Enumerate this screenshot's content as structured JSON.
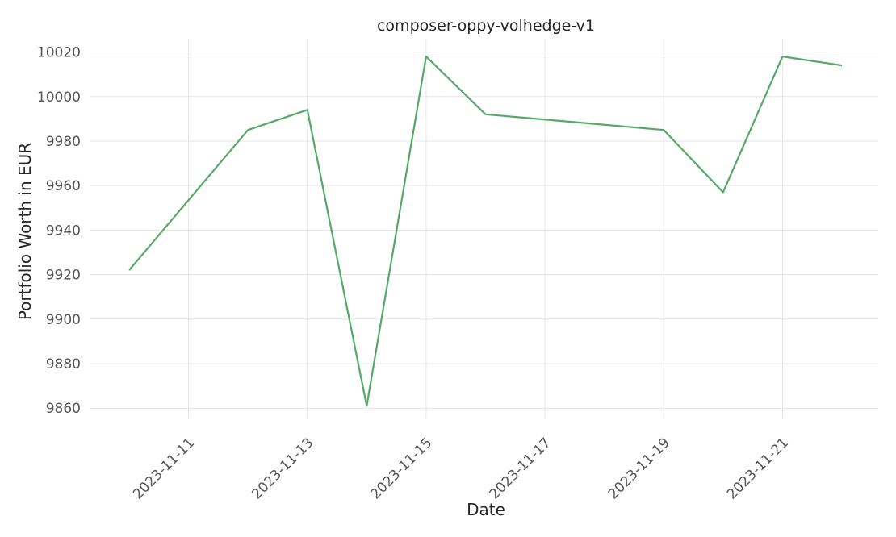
{
  "chart_data": {
    "type": "line",
    "title": "composer-oppy-volhedge-v1",
    "xlabel": "Date",
    "ylabel": "Portfolio Worth in EUR",
    "x": [
      "2023-11-10",
      "2023-11-12",
      "2023-11-13",
      "2023-11-14",
      "2023-11-15",
      "2023-11-16",
      "2023-11-19",
      "2023-11-20",
      "2023-11-21",
      "2023-11-22"
    ],
    "series": [
      {
        "values": [
          9922,
          9985,
          9994,
          9861,
          10018,
          9992,
          9985,
          9957,
          10018,
          10014
        ]
      }
    ],
    "xticks": [
      "2023-11-11",
      "2023-11-13",
      "2023-11-15",
      "2023-11-17",
      "2023-11-19",
      "2023-11-21"
    ],
    "yticks": [
      9860,
      9880,
      9900,
      9920,
      9940,
      9960,
      9980,
      10000,
      10020
    ],
    "xlim": [
      "2023-11-09",
      "2023-11-22"
    ],
    "ylim": [
      9855,
      10026
    ],
    "grid": true,
    "colors": {
      "line": "#55a868",
      "grid": "#e5e5e5"
    }
  }
}
